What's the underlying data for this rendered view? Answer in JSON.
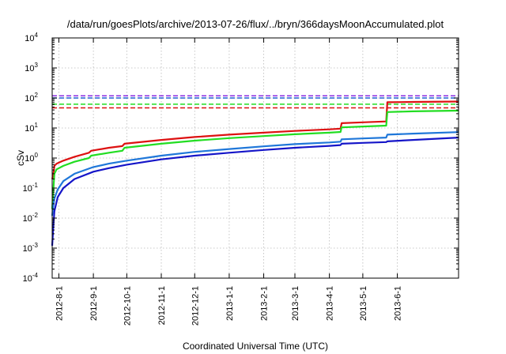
{
  "chart_data": {
    "type": "line",
    "title": "/data/run/goesPlots/archive/2013-07-26/flux/../bryn/366daysMoonAccumulated.plot",
    "xlabel": "Coordinated Universal Time (UTC)",
    "ylabel": "cSv",
    "yscale": "log",
    "xlim": [
      "2012-07-26",
      "2013-07-26"
    ],
    "ylim": [
      0.0001,
      10000
    ],
    "grid": true,
    "legend": "none",
    "x_ticks": [
      "2012-8-1",
      "2012-9-1",
      "2012-10-1",
      "2012-11-1",
      "2012-12-1",
      "2013-1-1",
      "2013-2-1",
      "2013-3-1",
      "2013-4-1",
      "2013-5-1",
      "2013-6-1"
    ],
    "y_ticks": [
      {
        "value": 0.0001,
        "base": "10",
        "exp": "-4"
      },
      {
        "value": 0.001,
        "base": "10",
        "exp": "-3"
      },
      {
        "value": 0.01,
        "base": "10",
        "exp": "-2"
      },
      {
        "value": 0.1,
        "base": "10",
        "exp": "-1"
      },
      {
        "value": 1,
        "base": "10",
        "exp": "0"
      },
      {
        "value": 10,
        "base": "10",
        "exp": "1"
      },
      {
        "value": 100,
        "base": "10",
        "exp": "2"
      },
      {
        "value": 1000,
        "base": "10",
        "exp": "3"
      },
      {
        "value": 10000,
        "base": "10",
        "exp": "4"
      }
    ],
    "reference_lines": [
      {
        "color": "#8a2be2",
        "y": 118
      },
      {
        "color": "#1f5fd0",
        "y": 100
      },
      {
        "color": "#22dd22",
        "y": 62
      },
      {
        "color": "#dd1111",
        "y": 47
      }
    ],
    "series": [
      {
        "color": "#dd1111",
        "points": [
          [
            "2012-07-26",
            0.2
          ],
          [
            "2012-07-27",
            0.28
          ],
          [
            "2012-07-28",
            0.55
          ],
          [
            "2012-07-30",
            0.65
          ],
          [
            "2012-08-05",
            0.82
          ],
          [
            "2012-08-15",
            1.1
          ],
          [
            "2012-08-28",
            1.5
          ],
          [
            "2012-08-30",
            1.75
          ],
          [
            "2012-09-15",
            2.2
          ],
          [
            "2012-09-27",
            2.5
          ],
          [
            "2012-09-29",
            3.0
          ],
          [
            "2012-11-01",
            4.0
          ],
          [
            "2012-12-01",
            5.0
          ],
          [
            "2013-01-01",
            6.0
          ],
          [
            "2013-02-01",
            7.0
          ],
          [
            "2013-03-01",
            8.0
          ],
          [
            "2013-04-01",
            9.0
          ],
          [
            "2013-04-11",
            9.5
          ],
          [
            "2013-04-12",
            14.5
          ],
          [
            "2013-05-01",
            15.5
          ],
          [
            "2013-05-22",
            16.5
          ],
          [
            "2013-05-23",
            72
          ],
          [
            "2013-06-15",
            74
          ],
          [
            "2013-07-26",
            76
          ]
        ]
      },
      {
        "color": "#22dd22",
        "points": [
          [
            "2012-07-26",
            0.02
          ],
          [
            "2012-07-27",
            0.08
          ],
          [
            "2012-07-28",
            0.3
          ],
          [
            "2012-07-30",
            0.42
          ],
          [
            "2012-08-05",
            0.55
          ],
          [
            "2012-08-15",
            0.75
          ],
          [
            "2012-08-28",
            1.0
          ],
          [
            "2012-08-30",
            1.2
          ],
          [
            "2012-09-15",
            1.5
          ],
          [
            "2012-09-27",
            1.75
          ],
          [
            "2012-09-29",
            2.2
          ],
          [
            "2012-11-01",
            3.0
          ],
          [
            "2012-12-01",
            3.8
          ],
          [
            "2013-01-01",
            4.6
          ],
          [
            "2013-02-01",
            5.4
          ],
          [
            "2013-03-01",
            6.2
          ],
          [
            "2013-04-01",
            7.0
          ],
          [
            "2013-04-11",
            7.4
          ],
          [
            "2013-04-12",
            10.5
          ],
          [
            "2013-05-01",
            11.2
          ],
          [
            "2013-05-22",
            12.0
          ],
          [
            "2013-05-23",
            34
          ],
          [
            "2013-06-15",
            36
          ],
          [
            "2013-07-26",
            38
          ]
        ]
      },
      {
        "color": "#1f77d9",
        "points": [
          [
            "2012-07-26",
            0.012
          ],
          [
            "2012-07-27",
            0.025
          ],
          [
            "2012-07-28",
            0.045
          ],
          [
            "2012-07-31",
            0.09
          ],
          [
            "2012-08-05",
            0.17
          ],
          [
            "2012-08-15",
            0.3
          ],
          [
            "2012-09-01",
            0.5
          ],
          [
            "2012-09-15",
            0.65
          ],
          [
            "2012-10-01",
            0.82
          ],
          [
            "2012-11-01",
            1.2
          ],
          [
            "2012-12-01",
            1.6
          ],
          [
            "2013-01-01",
            2.0
          ],
          [
            "2013-02-01",
            2.45
          ],
          [
            "2013-03-01",
            2.9
          ],
          [
            "2013-04-01",
            3.3
          ],
          [
            "2013-04-11",
            3.5
          ],
          [
            "2013-04-12",
            4.2
          ],
          [
            "2013-05-01",
            4.5
          ],
          [
            "2013-05-22",
            4.8
          ],
          [
            "2013-05-23",
            6.0
          ],
          [
            "2013-06-15",
            6.5
          ],
          [
            "2013-07-26",
            7.3
          ]
        ]
      },
      {
        "color": "#1515c8",
        "points": [
          [
            "2012-07-26",
            0.0012
          ],
          [
            "2012-07-27",
            0.005
          ],
          [
            "2012-07-28",
            0.017
          ],
          [
            "2012-07-31",
            0.05
          ],
          [
            "2012-08-05",
            0.1
          ],
          [
            "2012-08-15",
            0.2
          ],
          [
            "2012-09-01",
            0.35
          ],
          [
            "2012-09-15",
            0.46
          ],
          [
            "2012-10-01",
            0.6
          ],
          [
            "2012-11-01",
            0.9
          ],
          [
            "2012-12-01",
            1.2
          ],
          [
            "2013-01-01",
            1.5
          ],
          [
            "2013-02-01",
            1.85
          ],
          [
            "2013-03-01",
            2.2
          ],
          [
            "2013-04-01",
            2.55
          ],
          [
            "2013-04-11",
            2.7
          ],
          [
            "2013-04-12",
            3.0
          ],
          [
            "2013-05-01",
            3.2
          ],
          [
            "2013-05-22",
            3.4
          ],
          [
            "2013-05-23",
            3.6
          ],
          [
            "2013-06-15",
            4.0
          ],
          [
            "2013-07-26",
            4.8
          ]
        ]
      }
    ]
  }
}
